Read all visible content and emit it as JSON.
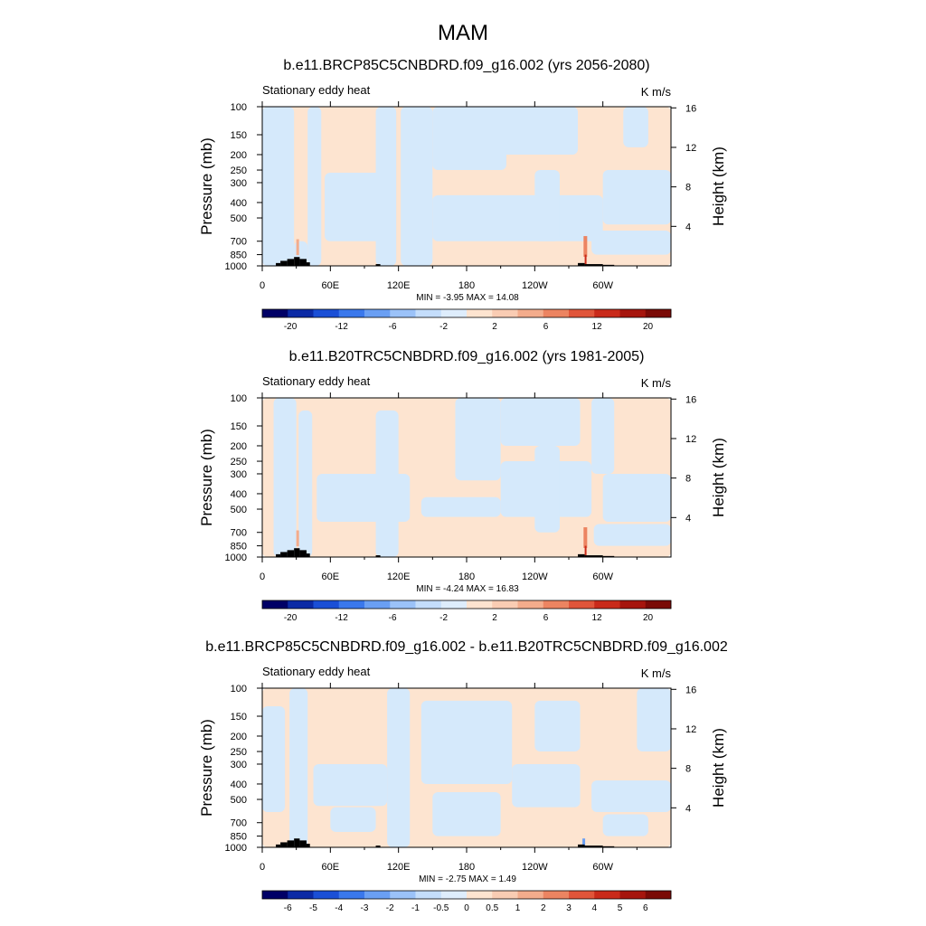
{
  "figure": {
    "title": "MAM"
  },
  "chart_data": [
    {
      "type": "heatmap",
      "title": "b.e11.BRCP85C5CNBDRD.f09_g16.002 (yrs 2056-2080)",
      "subtitle_left": "Stationary eddy heat",
      "units": "K m/s",
      "xlabel": "",
      "ylabel": "Pressure (mb)",
      "y2label": "Height (km)",
      "x_ticks": [
        "0",
        "60E",
        "120E",
        "180",
        "120W",
        "60W"
      ],
      "y_ticks": [
        "100",
        "150",
        "200",
        "250",
        "300",
        "400",
        "500",
        "700",
        "850",
        "1000"
      ],
      "y2_ticks": [
        "16",
        "12",
        "8",
        "4"
      ],
      "stats": "MIN =  -3.95  MAX =  14.08",
      "min": -3.95,
      "max": 14.08,
      "colorbar_levels": [
        "-20",
        "-12",
        "-6",
        "-2",
        "2",
        "6",
        "12",
        "20"
      ]
    },
    {
      "type": "heatmap",
      "title": "b.e11.B20TRC5CNBDRD.f09_g16.002 (yrs 1981-2005)",
      "subtitle_left": "Stationary eddy heat",
      "units": "K m/s",
      "xlabel": "",
      "ylabel": "Pressure (mb)",
      "y2label": "Height (km)",
      "x_ticks": [
        "0",
        "60E",
        "120E",
        "180",
        "120W",
        "60W"
      ],
      "y_ticks": [
        "100",
        "150",
        "200",
        "250",
        "300",
        "400",
        "500",
        "700",
        "850",
        "1000"
      ],
      "y2_ticks": [
        "16",
        "12",
        "8",
        "4"
      ],
      "stats": "MIN =  -4.24  MAX =  16.83",
      "min": -4.24,
      "max": 16.83,
      "colorbar_levels": [
        "-20",
        "-12",
        "-6",
        "-2",
        "2",
        "6",
        "12",
        "20"
      ]
    },
    {
      "type": "heatmap",
      "title": "b.e11.BRCP85C5CNBDRD.f09_g16.002 - b.e11.B20TRC5CNBDRD.f09_g16.002",
      "subtitle_left": "Stationary eddy heat",
      "units": "K m/s",
      "xlabel": "",
      "ylabel": "Pressure (mb)",
      "y2label": "Height (km)",
      "x_ticks": [
        "0",
        "60E",
        "120E",
        "180",
        "120W",
        "60W"
      ],
      "y_ticks": [
        "100",
        "150",
        "200",
        "250",
        "300",
        "400",
        "500",
        "700",
        "850",
        "1000"
      ],
      "y2_ticks": [
        "16",
        "12",
        "8",
        "4"
      ],
      "stats": "MIN =  -2.75  MAX =  1.49",
      "min": -2.75,
      "max": 1.49,
      "colorbar_levels": [
        "-6",
        "-5",
        "-4",
        "-3",
        "-2",
        "-1",
        "-0.5",
        "0",
        "0.5",
        "1",
        "2",
        "3",
        "4",
        "5",
        "6"
      ]
    }
  ],
  "colors": {
    "light_positive": "#fde4d0",
    "light_negative": "#d5e9fb",
    "terrain": "#000000",
    "colorbar_a": [
      "#000066",
      "#0b2aa5",
      "#1a4fd6",
      "#3a78ec",
      "#6a9ff3",
      "#9bc2f8",
      "#c4ddfb",
      "#deedfc",
      "#fde4d0",
      "#f9ccb3",
      "#f3ac8c",
      "#ec8461",
      "#e0553a",
      "#c92a1a",
      "#a6150d",
      "#7a0a06"
    ],
    "colorbar_b": [
      "#000066",
      "#0b2aa5",
      "#1a4fd6",
      "#3a78ec",
      "#6a9ff3",
      "#9bc2f8",
      "#c4ddfb",
      "#deedfc",
      "#fde4d0",
      "#f9ccb3",
      "#f3ac8c",
      "#ec8461",
      "#e0553a",
      "#c92a1a",
      "#a6150d",
      "#7a0a06"
    ]
  }
}
